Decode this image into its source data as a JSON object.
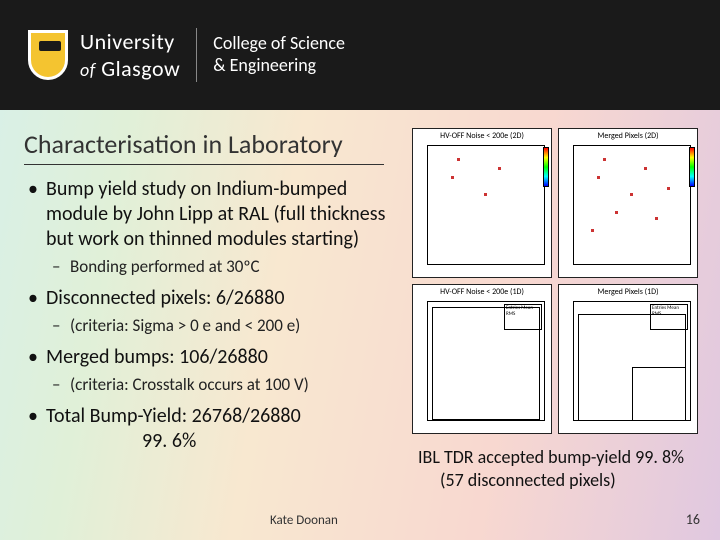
{
  "header": {
    "university_prefix": "University",
    "of": "of",
    "university_name": "Glasgow",
    "college_line1": "College of Science",
    "college_line2": "& Engineering"
  },
  "title": "Characterisation in Laboratory",
  "bullets": {
    "b1": "Bump yield study on Indium-bumped module by John Lipp at RAL (full thickness but work on thinned modules starting)",
    "b1_sub": "Bonding performed at 30ºC",
    "b2": "Disconnected pixels: 6/26880",
    "b2_sub": "(criteria: Sigma > 0 e and < 200 e)",
    "b3": "Merged bumps: 106/26880",
    "b3_sub": "(criteria: Crosstalk occurs at 100 V)",
    "b4": "Total Bump-Yield: 26768/26880",
    "b4_pct": "99. 6%"
  },
  "footer_author": "Kate Doonan",
  "page_number": "16",
  "caption": {
    "line1": "IBL TDR accepted bump-yield 99. 8%",
    "line2": "(57 disconnected pixels)"
  },
  "panels": {
    "p1_title": "HV-OFF Noise < 200e (2D)",
    "p2_title": "Merged Pixels (2D)",
    "p3_title": "HV-OFF Noise < 200e (1D)",
    "p4_title": "Merged Pixels (1D)",
    "statbox": "Entries\nMean\nRMS"
  },
  "colors": {
    "header_bg": "#1a1a1a",
    "crest_bg": "#f4c430",
    "text": "#111111",
    "panel_border": "#222222",
    "dot": "#cc3333"
  }
}
